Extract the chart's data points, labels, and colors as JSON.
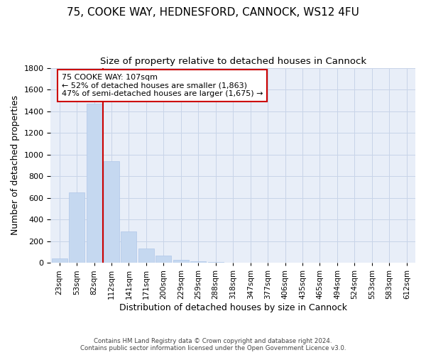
{
  "title1": "75, COOKE WAY, HEDNESFORD, CANNOCK, WS12 4FU",
  "title2": "Size of property relative to detached houses in Cannock",
  "xlabel": "Distribution of detached houses by size in Cannock",
  "ylabel": "Number of detached properties",
  "footnote1": "Contains HM Land Registry data © Crown copyright and database right 2024.",
  "footnote2": "Contains public sector information licensed under the Open Government Licence v3.0.",
  "bar_labels": [
    "23sqm",
    "53sqm",
    "82sqm",
    "112sqm",
    "141sqm",
    "171sqm",
    "200sqm",
    "229sqm",
    "259sqm",
    "288sqm",
    "318sqm",
    "347sqm",
    "377sqm",
    "406sqm",
    "435sqm",
    "465sqm",
    "494sqm",
    "524sqm",
    "553sqm",
    "583sqm",
    "612sqm"
  ],
  "bar_values": [
    40,
    650,
    1470,
    940,
    290,
    130,
    65,
    25,
    15,
    8,
    5,
    2,
    1,
    1,
    0,
    0,
    0,
    0,
    0,
    0,
    0
  ],
  "bar_color": "#c5d8f0",
  "bar_edge_color": "#aec6e8",
  "grid_color": "#c8d4e8",
  "background_color": "#e8eef8",
  "vline_x_idx": 2.5,
  "vline_color": "#cc0000",
  "annotation_line1": "75 COOKE WAY: 107sqm",
  "annotation_line2": "← 52% of detached houses are smaller (1,863)",
  "annotation_line3": "47% of semi-detached houses are larger (1,675) →",
  "annotation_box_color": "#cc0000",
  "ylim": [
    0,
    1800
  ],
  "yticks": [
    0,
    200,
    400,
    600,
    800,
    1000,
    1200,
    1400,
    1600,
    1800
  ],
  "title1_fontsize": 11,
  "title2_fontsize": 9.5,
  "xlabel_fontsize": 9,
  "ylabel_fontsize": 9,
  "tick_fontsize": 8,
  "xtick_fontsize": 7.5
}
